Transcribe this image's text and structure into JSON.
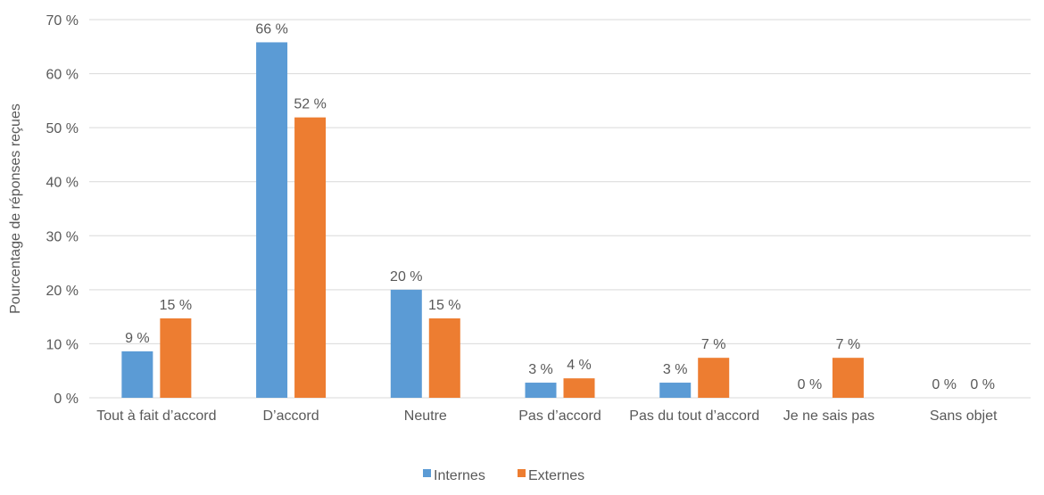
{
  "chart_data": {
    "type": "bar",
    "title": "",
    "xlabel": "",
    "ylabel": "Pourcentage de réponses reçues",
    "ylim": [
      0,
      70
    ],
    "yticks": [
      "0 %",
      "10 %",
      "20 %",
      "30 %",
      "40 %",
      "50 %",
      "60 %",
      "70 %"
    ],
    "grid": true,
    "legend_position": "bottom",
    "categories": [
      "Tout à fait d’accord",
      "D’accord",
      "Neutre",
      "Pas d’accord",
      "Pas du tout d’accord",
      "Je ne sais pas",
      "Sans objet"
    ],
    "series": [
      {
        "name": "Internes",
        "color": "#5B9BD5",
        "values": [
          8.6,
          65.8,
          20.0,
          2.8,
          2.8,
          0,
          0
        ],
        "labels": [
          "9 %",
          "66 %",
          "20 %",
          "3 %",
          "3 %",
          "0 %",
          "0 %"
        ]
      },
      {
        "name": "Externes",
        "color": "#ED7D31",
        "values": [
          14.7,
          51.9,
          14.7,
          3.6,
          7.4,
          7.4,
          0
        ],
        "labels": [
          "15 %",
          "52 %",
          "15 %",
          "4 %",
          "7 %",
          "7 %",
          "0 %"
        ]
      }
    ]
  }
}
